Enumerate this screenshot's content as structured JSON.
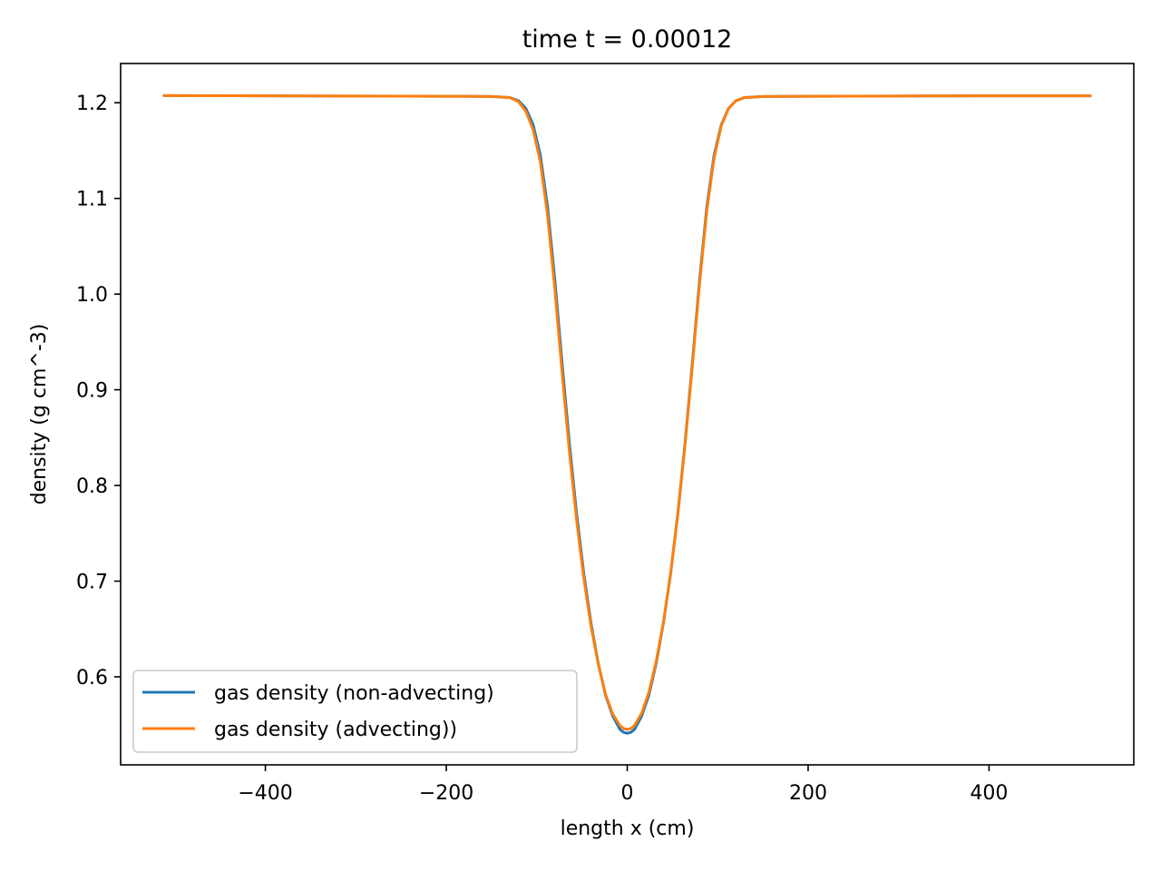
{
  "chart_data": {
    "type": "line",
    "title": "time t = 0.00012",
    "xlabel": "length x (cm)",
    "ylabel": "density (g cm^-3)",
    "xlim": [
      -560,
      560
    ],
    "ylim": [
      0.508,
      1.241
    ],
    "xticks": [
      -400,
      -200,
      0,
      200,
      400
    ],
    "xtick_labels": [
      "−400",
      "−200",
      "0",
      "200",
      "400"
    ],
    "yticks": [
      0.6,
      0.7,
      0.8,
      0.9,
      1.0,
      1.1,
      1.2
    ],
    "ytick_labels": [
      "0.6",
      "0.7",
      "0.8",
      "0.9",
      "1.0",
      "1.1",
      "1.2"
    ],
    "grid": false,
    "legend_position": "lower-left",
    "series": [
      {
        "name": "gas density (non-advecting)",
        "color": "#1f77b4",
        "x": [
          -512,
          -400,
          -300,
          -200,
          -150,
          -130,
          -120,
          -112,
          -104,
          -96,
          -88,
          -80,
          -72,
          -64,
          -56,
          -48,
          -40,
          -32,
          -24,
          -16,
          -8,
          -4,
          0,
          4,
          8,
          16,
          24,
          32,
          40,
          48,
          56,
          64,
          72,
          80,
          88,
          96,
          104,
          112,
          120,
          130,
          150,
          200,
          300,
          400,
          512
        ],
        "y": [
          1.2075,
          1.2072,
          1.207,
          1.2068,
          1.2065,
          1.2055,
          1.202,
          1.194,
          1.177,
          1.145,
          1.091,
          1.015,
          0.928,
          0.845,
          0.771,
          0.708,
          0.656,
          0.614,
          0.581,
          0.559,
          0.545,
          0.542,
          0.541,
          0.542,
          0.545,
          0.559,
          0.581,
          0.614,
          0.656,
          0.708,
          0.771,
          0.845,
          0.928,
          1.015,
          1.091,
          1.145,
          1.177,
          1.194,
          1.202,
          1.2055,
          1.2065,
          1.2068,
          1.207,
          1.2072,
          1.2072
        ]
      },
      {
        "name": "gas density (advecting))",
        "color": "#ff7f0e",
        "x": [
          -512,
          -400,
          -300,
          -200,
          -150,
          -130,
          -120,
          -112,
          -104,
          -96,
          -88,
          -80,
          -72,
          -64,
          -56,
          -48,
          -40,
          -32,
          -24,
          -16,
          -8,
          -4,
          0,
          4,
          8,
          16,
          24,
          32,
          40,
          48,
          56,
          64,
          72,
          80,
          88,
          96,
          104,
          112,
          120,
          130,
          150,
          200,
          300,
          400,
          512
        ],
        "y": [
          1.2075,
          1.2072,
          1.207,
          1.2068,
          1.2065,
          1.2055,
          1.201,
          1.191,
          1.172,
          1.138,
          1.082,
          1.005,
          0.918,
          0.836,
          0.764,
          0.703,
          0.653,
          0.613,
          0.582,
          0.561,
          0.549,
          0.546,
          0.545,
          0.546,
          0.549,
          0.562,
          0.584,
          0.616,
          0.657,
          0.708,
          0.77,
          0.843,
          0.925,
          1.011,
          1.087,
          1.142,
          1.176,
          1.194,
          1.202,
          1.2055,
          1.2065,
          1.2068,
          1.207,
          1.2072,
          1.2072
        ]
      }
    ]
  }
}
